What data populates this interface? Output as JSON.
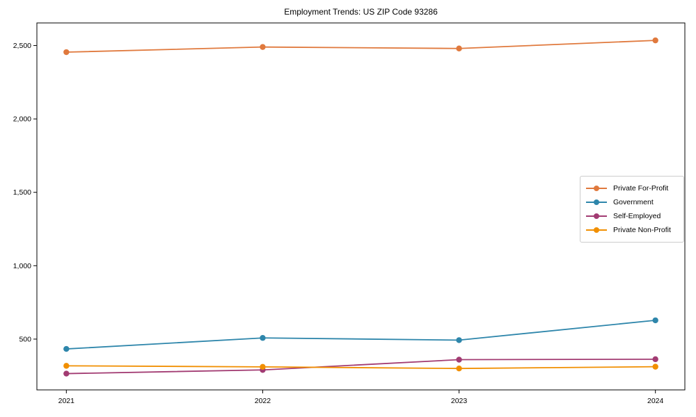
{
  "chart_data": {
    "type": "line",
    "title": "Employment Trends: US ZIP Code 93286",
    "x": [
      2021,
      2022,
      2023,
      2024
    ],
    "xticks": [
      "2021",
      "2022",
      "2023",
      "2024"
    ],
    "yticks": [
      500,
      1000,
      1500,
      2000,
      2500
    ],
    "xlim": [
      2020.85,
      2024.15
    ],
    "ylim": [
      154,
      2654
    ],
    "grid": false,
    "legend_position": "center right",
    "marker": "circle",
    "series": [
      {
        "name": "Private For-Profit",
        "color": "#E0793D",
        "values": [
          2455,
          2490,
          2480,
          2535
        ]
      },
      {
        "name": "Government",
        "color": "#2E86AB",
        "values": [
          433,
          508,
          493,
          628
        ]
      },
      {
        "name": "Self-Employed",
        "color": "#A23B72",
        "values": [
          265,
          290,
          360,
          363
        ]
      },
      {
        "name": "Private Non-Profit",
        "color": "#F18F01",
        "values": [
          318,
          311,
          300,
          312
        ]
      }
    ],
    "axis_color": "#000000",
    "background_color": "#ffffff"
  }
}
